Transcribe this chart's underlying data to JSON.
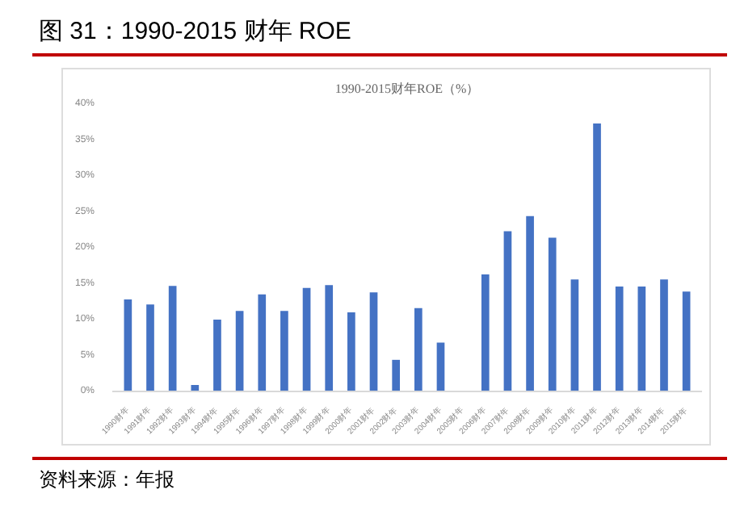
{
  "chart_data": {
    "type": "bar",
    "title": "图 31：1990-2015 财年 ROE",
    "subtitle": "1990-2015财年ROE（%）",
    "categories": [
      "1990财年",
      "1991财年",
      "1992财年",
      "1993财年",
      "1994财年",
      "1995财年",
      "1996财年",
      "1997财年",
      "1998财年",
      "1999财年",
      "2000财年",
      "2001财年",
      "2002财年",
      "2003财年",
      "2004财年",
      "2005财年",
      "2006财年",
      "2007财年",
      "2008财年",
      "2009财年",
      "2010财年",
      "2011财年",
      "2012财年",
      "2013财年",
      "2014财年",
      "2015财年"
    ],
    "values": [
      12.8,
      12.1,
      14.7,
      0.9,
      10.0,
      11.2,
      13.5,
      11.2,
      14.4,
      14.8,
      11.0,
      13.8,
      4.4,
      11.6,
      6.8,
      null,
      16.3,
      22.3,
      24.4,
      21.4,
      15.6,
      37.3,
      14.6,
      14.6,
      15.6,
      13.9
    ],
    "color": "#4472c4",
    "ylim": [
      0,
      40
    ],
    "yticks": [
      {
        "value": 0,
        "label": "0%"
      },
      {
        "value": 5,
        "label": "5%"
      },
      {
        "value": 10,
        "label": "10%"
      },
      {
        "value": 15,
        "label": "15%"
      },
      {
        "value": 20,
        "label": "20%"
      },
      {
        "value": 25,
        "label": "25%"
      },
      {
        "value": 30,
        "label": "30%"
      },
      {
        "value": 35,
        "label": "35%"
      },
      {
        "value": 40,
        "label": "40%"
      }
    ],
    "grid": false,
    "annotations": [
      "资料来源：年报"
    ]
  }
}
